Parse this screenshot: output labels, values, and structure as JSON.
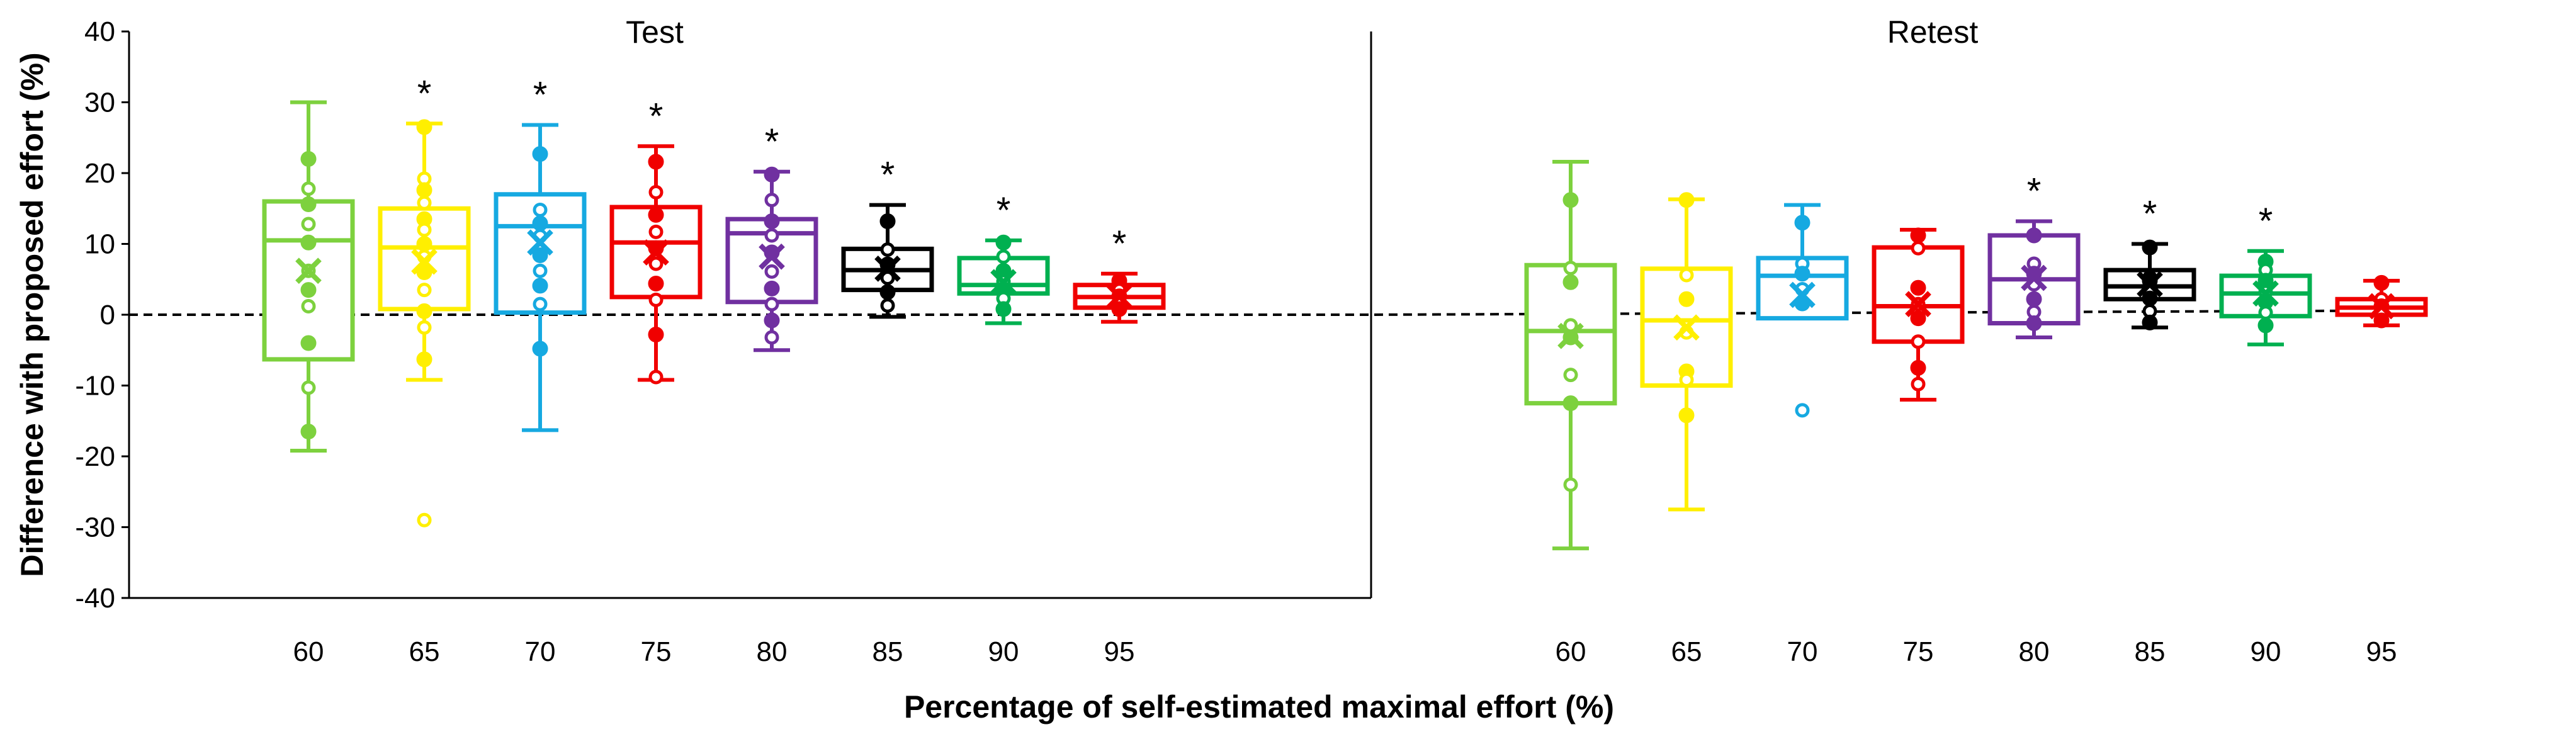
{
  "chart_data": {
    "type": "boxplot",
    "ylabel": "Difference with proposed   effort (%)",
    "xlabel": "Percentage of self-estimated maximal effort (%)",
    "ylim": [
      -40,
      40
    ],
    "yticks": [
      -40,
      -30,
      -20,
      -10,
      0,
      10,
      20,
      30,
      40
    ],
    "reference_line": 0,
    "categories": [
      "60",
      "65",
      "70",
      "75",
      "80",
      "85",
      "90",
      "95"
    ],
    "colors": [
      "#7dd13e",
      "#ffef00",
      "#16a9e1",
      "#f00000",
      "#7030a0",
      "#000000",
      "#00b050",
      "#f00000"
    ],
    "panels": [
      {
        "title": "Test",
        "reference_offset": 0,
        "boxes": [
          {
            "category": "60",
            "whisker_low": -19.2,
            "q1": -6.3,
            "median": 10.5,
            "q3": 16.0,
            "whisker_high": 30.0,
            "mean": 6.2,
            "significant": false,
            "points": [
              22,
              17.8,
              15.6,
              12.8,
              10.2,
              6.2,
              3.5,
              1.2,
              -4,
              -10.3,
              -16.5
            ]
          },
          {
            "category": "65",
            "whisker_low": -9.2,
            "q1": 0.8,
            "median": 9.5,
            "q3": 15.0,
            "whisker_high": 27.0,
            "mean": 7.5,
            "significant": true,
            "points": [
              26.5,
              19.2,
              17.6,
              15.8,
              13.5,
              12,
              10,
              8.2,
              6,
              3.5,
              0.5,
              -1.8,
              -6.3,
              -29
            ]
          },
          {
            "category": "70",
            "whisker_low": -16.3,
            "q1": 0.3,
            "median": 12.5,
            "q3": 17.0,
            "whisker_high": 26.8,
            "mean": 10.2,
            "significant": true,
            "points": [
              22.7,
              14.8,
              12.9,
              11.1,
              8.4,
              6.2,
              4.1,
              1.5,
              -4.8
            ]
          },
          {
            "category": "75",
            "whisker_low": -9.2,
            "q1": 2.5,
            "median": 10.2,
            "q3": 15.2,
            "whisker_high": 23.8,
            "mean": 8.8,
            "significant": true,
            "points": [
              21.6,
              17.3,
              14.1,
              11.7,
              9.4,
              7.2,
              4.4,
              2.1,
              -2.8,
              -8.8
            ]
          },
          {
            "category": "80",
            "whisker_low": -5.0,
            "q1": 1.8,
            "median": 11.5,
            "q3": 13.5,
            "whisker_high": 20.2,
            "mean": 8.2,
            "significant": true,
            "points": [
              19.8,
              16.2,
              13.2,
              11.2,
              8.8,
              6.1,
              3.7,
              1.5,
              -0.8,
              -3.2
            ]
          },
          {
            "category": "85",
            "whisker_low": -0.3,
            "q1": 3.5,
            "median": 6.3,
            "q3": 9.3,
            "whisker_high": 15.5,
            "mean": 6.5,
            "significant": true,
            "points": [
              13.2,
              9.2,
              7.1,
              5.2,
              3.2,
              1.3
            ]
          },
          {
            "category": "90",
            "whisker_low": -1.2,
            "q1": 3.0,
            "median": 4.2,
            "q3": 8.0,
            "whisker_high": 10.5,
            "mean": 4.6,
            "significant": true,
            "points": [
              10.2,
              8.2,
              6.2,
              4.7,
              3.6,
              2.3,
              0.8
            ]
          },
          {
            "category": "95",
            "whisker_low": -1.0,
            "q1": 1.0,
            "median": 2.5,
            "q3": 4.2,
            "whisker_high": 5.8,
            "mean": 2.6,
            "significant": true,
            "points": [
              4.8,
              3.5,
              2.6,
              1.8,
              0.8
            ]
          }
        ]
      },
      {
        "title": "Retest",
        "reference_offset": 0.6,
        "boxes": [
          {
            "category": "60",
            "whisker_low": -33.0,
            "q1": -12.5,
            "median": -2.3,
            "q3": 7.0,
            "whisker_high": 21.6,
            "mean": -3.0,
            "significant": false,
            "points": [
              16.2,
              6.6,
              4.6,
              -1.5,
              -3.2,
              -8.5,
              -12.5,
              -24
            ]
          },
          {
            "category": "65",
            "whisker_low": -27.5,
            "q1": -10.0,
            "median": -0.8,
            "q3": 6.5,
            "whisker_high": 16.3,
            "mean": -1.8,
            "significant": false,
            "points": [
              16.2,
              5.6,
              2.2,
              -2.5,
              -8,
              -9.2,
              -14.2
            ]
          },
          {
            "category": "70",
            "whisker_low": -0.5,
            "q1": -0.5,
            "median": 5.5,
            "q3": 8.0,
            "whisker_high": 15.5,
            "mean": 2.8,
            "significant": false,
            "points": [
              13,
              7.2,
              5.8,
              3.6,
              1.6,
              -13.5
            ]
          },
          {
            "category": "75",
            "whisker_low": -12.0,
            "q1": -3.8,
            "median": 1.2,
            "q3": 9.5,
            "whisker_high": 12.0,
            "mean": 1.5,
            "significant": false,
            "points": [
              11.2,
              9.4,
              3.8,
              1.5,
              -0.5,
              -3.8,
              -7.5,
              -9.8
            ]
          },
          {
            "category": "80",
            "whisker_low": -3.2,
            "q1": -1.2,
            "median": 5.0,
            "q3": 11.2,
            "whisker_high": 13.2,
            "mean": 5.2,
            "significant": true,
            "points": [
              11.2,
              7.2,
              5.8,
              4.3,
              2.2,
              0.4,
              -1.2
            ]
          },
          {
            "category": "85",
            "whisker_low": -1.8,
            "q1": 2.2,
            "median": 4.0,
            "q3": 6.3,
            "whisker_high": 10.0,
            "mean": 4.3,
            "significant": true,
            "points": [
              9.5,
              5.3,
              4.8,
              3.3,
              2.3,
              0.5,
              -1.1
            ]
          },
          {
            "category": "90",
            "whisker_low": -4.2,
            "q1": -0.2,
            "median": 3.0,
            "q3": 5.5,
            "whisker_high": 9.0,
            "mean": 3.0,
            "significant": true,
            "points": [
              7.5,
              6.3,
              4.8,
              3.2,
              1.8,
              0.3,
              -1.5
            ]
          },
          {
            "category": "95",
            "whisker_low": -1.5,
            "q1": 0.0,
            "median": 1.0,
            "q3": 2.2,
            "whisker_high": 4.8,
            "mean": 1.2,
            "significant": false,
            "points": [
              4.5,
              2.2,
              1.2,
              0.5,
              -0.8
            ]
          }
        ]
      }
    ]
  }
}
